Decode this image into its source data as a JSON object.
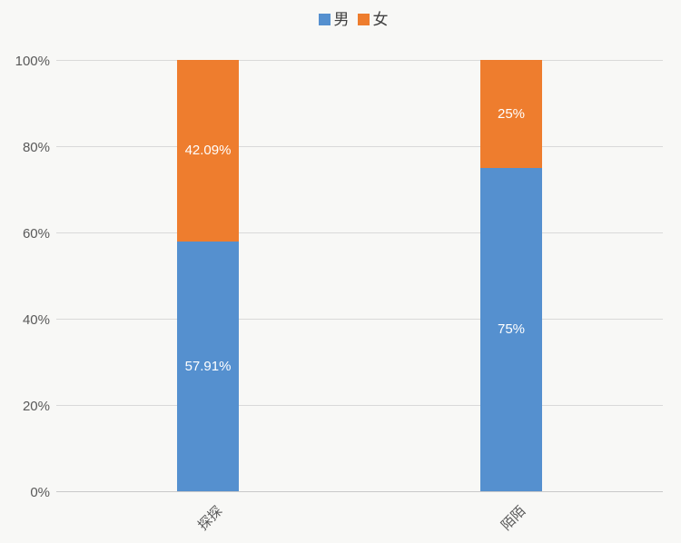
{
  "chart_data": {
    "type": "bar",
    "variant": "stacked-100-percent-column",
    "title": "",
    "xlabel": "",
    "ylabel": "",
    "categories": [
      "探探",
      "陌陌"
    ],
    "series": [
      {
        "name": "男",
        "color": "#5590CF",
        "values": [
          57.91,
          75
        ],
        "data_labels": [
          "57.91%",
          "75%"
        ]
      },
      {
        "name": "女",
        "color": "#EE7D2E",
        "values": [
          42.09,
          25
        ],
        "data_labels": [
          "42.09%",
          "25%"
        ]
      }
    ],
    "ylim": [
      0,
      100
    ],
    "ytick_values": [
      0,
      20,
      40,
      60,
      80,
      100
    ],
    "ytick_labels": [
      "0%",
      "20%",
      "40%",
      "60%",
      "80%",
      "100%"
    ],
    "grid": true,
    "legend_position": "top-center"
  },
  "colors": {
    "background": "#f8f8f6",
    "gridline": "#d9d9d9",
    "axis_line": "#c9c9c9",
    "tick_text": "#595959",
    "data_label_text": "#ffffff",
    "legend_text": "#3f3f3f"
  }
}
